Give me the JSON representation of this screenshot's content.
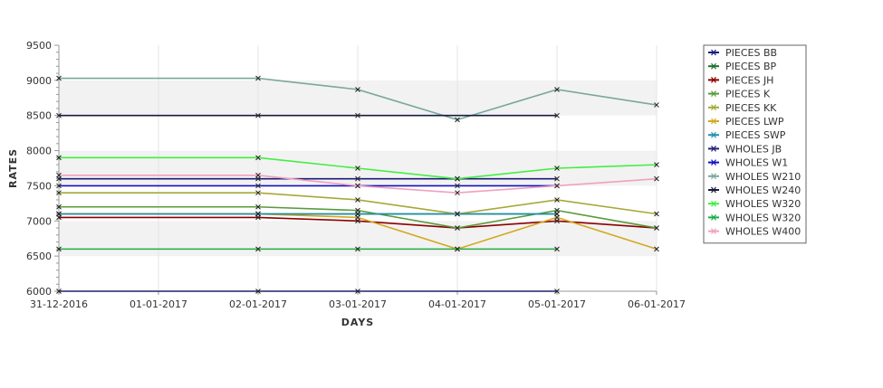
{
  "chart_data": {
    "type": "line",
    "title": "",
    "xlabel": "DAYS",
    "ylabel": "RATES",
    "x": [
      "31-12-2016",
      "01-01-2017",
      "02-01-2017",
      "03-01-2017",
      "04-01-2017",
      "05-01-2017",
      "06-01-2017"
    ],
    "ylim": [
      6000,
      9500
    ],
    "yticks": [
      6000,
      6500,
      7000,
      7500,
      8000,
      8500,
      9000,
      9500
    ],
    "grid": true,
    "legend_position": "right",
    "series": [
      {
        "name": "PIECES BB",
        "color": "#1a1a7a",
        "values": [
          7600,
          null,
          7600,
          7600,
          7600,
          7600,
          null
        ]
      },
      {
        "name": "PIECES BP",
        "color": "#1e6e2e",
        "values": [
          7100,
          null,
          7100,
          7100,
          7100,
          7100,
          null
        ]
      },
      {
        "name": "PIECES JH",
        "color": "#8b0000",
        "values": [
          7050,
          null,
          7050,
          7000,
          6900,
          7000,
          6900
        ]
      },
      {
        "name": "PIECES K",
        "color": "#5a9a3a",
        "values": [
          7200,
          null,
          7200,
          7150,
          6900,
          7150,
          6900
        ]
      },
      {
        "name": "PIECES KK",
        "color": "#a8a838",
        "values": [
          7400,
          null,
          7400,
          7300,
          7100,
          7300,
          7100
        ]
      },
      {
        "name": "PIECES LWP",
        "color": "#d4a820",
        "values": [
          7100,
          null,
          7100,
          7050,
          6600,
          7050,
          6600
        ]
      },
      {
        "name": "PIECES SWP",
        "color": "#2090b0",
        "values": [
          7100,
          null,
          7100,
          7100,
          7100,
          7100,
          null
        ]
      },
      {
        "name": "WHOLES JB",
        "color": "#20206e",
        "values": [
          6000,
          null,
          6000,
          6000,
          null,
          6000,
          null
        ]
      },
      {
        "name": "WHOLES W1",
        "color": "#1010c0",
        "values": [
          7500,
          null,
          7500,
          7500,
          7500,
          7500,
          null
        ]
      },
      {
        "name": "WHOLES W210",
        "color": "#7aa89a",
        "values": [
          9030,
          null,
          9030,
          8870,
          8440,
          8870,
          8650
        ]
      },
      {
        "name": "WHOLES W240",
        "color": "#1a1a40",
        "values": [
          8500,
          null,
          8500,
          8500,
          null,
          8500,
          null
        ]
      },
      {
        "name": "WHOLES W320",
        "color": "#40ee40",
        "values": [
          7900,
          null,
          7900,
          7750,
          7600,
          7750,
          7800
        ]
      },
      {
        "name": "WHOLES W320 ",
        "color": "#22aa44",
        "values": [
          6600,
          null,
          6600,
          6600,
          6600,
          6600,
          null
        ]
      },
      {
        "name": "WHOLES W400",
        "color": "#f0a0c0",
        "values": [
          7650,
          null,
          7650,
          7500,
          7400,
          7500,
          7600
        ]
      }
    ]
  }
}
